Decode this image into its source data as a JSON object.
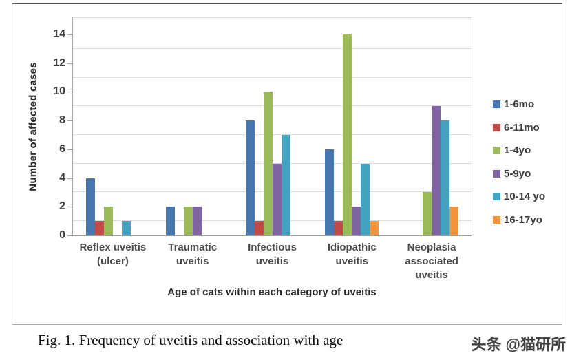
{
  "chart_data": {
    "type": "bar",
    "title": "",
    "ylabel": "Number of affected cases",
    "xlabel": "Age of cats within each category of uveitis",
    "categories": [
      [
        "Reflex uveitis",
        "(ulcer)"
      ],
      [
        "Traumatic",
        "uveitis"
      ],
      [
        "Infectious",
        "uveitis"
      ],
      [
        "Idiopathic",
        "uveitis"
      ],
      [
        "Neoplasia",
        "associated",
        "uveitis"
      ]
    ],
    "series": [
      {
        "name": "1-6mo",
        "color": "#4677AE",
        "values": [
          4,
          2,
          8,
          6,
          0
        ]
      },
      {
        "name": "6-11mo",
        "color": "#BE4B48",
        "values": [
          1,
          0,
          1,
          1,
          0
        ]
      },
      {
        "name": "1-4yo",
        "color": "#9BBB59",
        "values": [
          2,
          2,
          10,
          14,
          3
        ]
      },
      {
        "name": "5-9yo",
        "color": "#8064A2",
        "values": [
          0,
          2,
          5,
          2,
          9
        ]
      },
      {
        "name": "10-14 yo",
        "color": "#44A2C1",
        "values": [
          1,
          0,
          7,
          5,
          8
        ]
      },
      {
        "name": "16-17yo",
        "color": "#F0943D",
        "values": [
          0,
          0,
          0,
          1,
          2
        ]
      }
    ],
    "ylim": [
      0,
      14
    ],
    "yticks": [
      0,
      2,
      4,
      6,
      8,
      10,
      12,
      14
    ],
    "gridlines": [
      1,
      3,
      5,
      7,
      9,
      11,
      13
    ],
    "grid": "on",
    "legend_position": "right"
  },
  "caption": "Fig. 1. Frequency of uveitis and association with age",
  "watermark": "头条 @猫研所"
}
